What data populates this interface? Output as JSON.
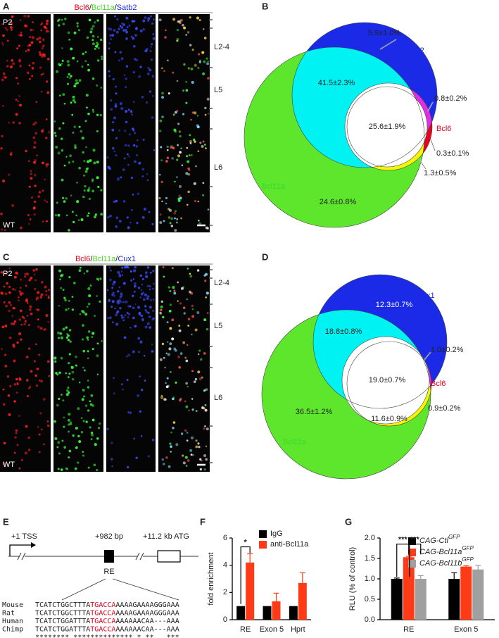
{
  "panel_labels": [
    "A",
    "B",
    "C",
    "D",
    "E",
    "F",
    "G"
  ],
  "panel_a": {
    "title_parts": [
      "Bcl6",
      "/",
      "Bcl11a",
      "/",
      "Satb2"
    ],
    "age": "P2",
    "genotype": "WT",
    "layers": [
      "L2-4",
      "L5",
      "L6"
    ]
  },
  "panel_b": {
    "sets": [
      "Satb2",
      "Bcl6",
      "Bcl11a"
    ],
    "regions": [
      "5.9±1.0%",
      "41.5±2.3%",
      "25.6±1.9%",
      "0.8±0.2%",
      "0.3±0.1%",
      "1.3±0.5%",
      "24.6±0.8%"
    ]
  },
  "panel_c": {
    "title_parts": [
      "Bcl6",
      "/",
      "Bcl11a",
      "/",
      "Cux1"
    ],
    "age": "P2",
    "genotype": "WT",
    "layers": [
      "L2-4",
      "L5",
      "L6"
    ]
  },
  "panel_d": {
    "sets": [
      "Cux1",
      "Bcl6",
      "Bcl11a"
    ],
    "regions": [
      "12.3±0.7%",
      "18.8±0.8%",
      "19.0±0.7%",
      "1.0±0.2%",
      "0.9±0.2%",
      "11.6±0.9%",
      "36.5±1.2%"
    ]
  },
  "panel_e": {
    "labels": [
      "+1 TSS",
      "+982 bp",
      "+11.2 kb ATG",
      "RE"
    ],
    "alignment": [
      {
        "species": "Mouse",
        "seq": [
          "TCATCTGGCTTTA",
          "TGACCA",
          "AAAAGAAAAGGGAAA"
        ]
      },
      {
        "species": "Rat",
        "seq": [
          "TCATCTGGCTTTA",
          "TGACCA",
          "AAAAGAAAAGGGAAA"
        ]
      },
      {
        "species": "Human",
        "seq": [
          "TCATCTGGATTTA",
          "TGACCA",
          "AAAAAACAA---AAA"
        ]
      },
      {
        "species": "Chimp",
        "seq": [
          "TCATCTGGATTTA",
          "TGACCA",
          "AAAAAACAA---AAA"
        ]
      }
    ],
    "consensus": "********.**************.*.**   ***"
  },
  "chart_data": [
    {
      "type": "bar",
      "y_label": "fold enrichment",
      "categories": [
        "RE",
        "Exon 5",
        "Hprt"
      ],
      "series": [
        {
          "name": "IgG",
          "color": "#000000",
          "values": [
            1,
            1,
            1
          ],
          "errors": [
            0,
            0,
            0
          ]
        },
        {
          "name": "anti-Bcl11a",
          "color": "#ff3a17",
          "values": [
            4.2,
            1.35,
            2.7
          ],
          "errors": [
            0.65,
            0.6,
            0.75
          ]
        }
      ],
      "ylim": [
        0,
        6
      ],
      "yticks": [
        0,
        2,
        4,
        6
      ],
      "annotations": [
        "*"
      ]
    },
    {
      "type": "bar",
      "y_label": "RLU (% of control)",
      "categories": [
        "RE",
        "Exon 5"
      ],
      "series": [
        {
          "name": "CAG-Ctl",
          "name_sup": "GFP",
          "color": "#000000",
          "values": [
            1.0,
            1.0
          ],
          "errors": [
            0.02,
            0.15
          ]
        },
        {
          "name": "CAG-Bcl11a",
          "name_sup": "GFP",
          "color": "#ff3a17",
          "values": [
            1.53,
            1.3
          ],
          "errors": [
            0.02,
            0.02
          ]
        },
        {
          "name": "CAG-Bcl11b",
          "name_sup": "GFP",
          "color": "#a0a0a0",
          "values": [
            1.0,
            1.23
          ],
          "errors": [
            0.08,
            0.1
          ]
        }
      ],
      "ylim": [
        0,
        2
      ],
      "yticks": [
        {
          "value": 0,
          "label": "0.0"
        },
        {
          "value": 0.5,
          "label": "0.5"
        },
        {
          "value": 1,
          "label": "1.0"
        },
        {
          "value": 1.5,
          "label": "1.5"
        },
        {
          "value": 2,
          "label": "2.0"
        }
      ],
      "annotations": [
        "***",
        "***"
      ]
    }
  ]
}
